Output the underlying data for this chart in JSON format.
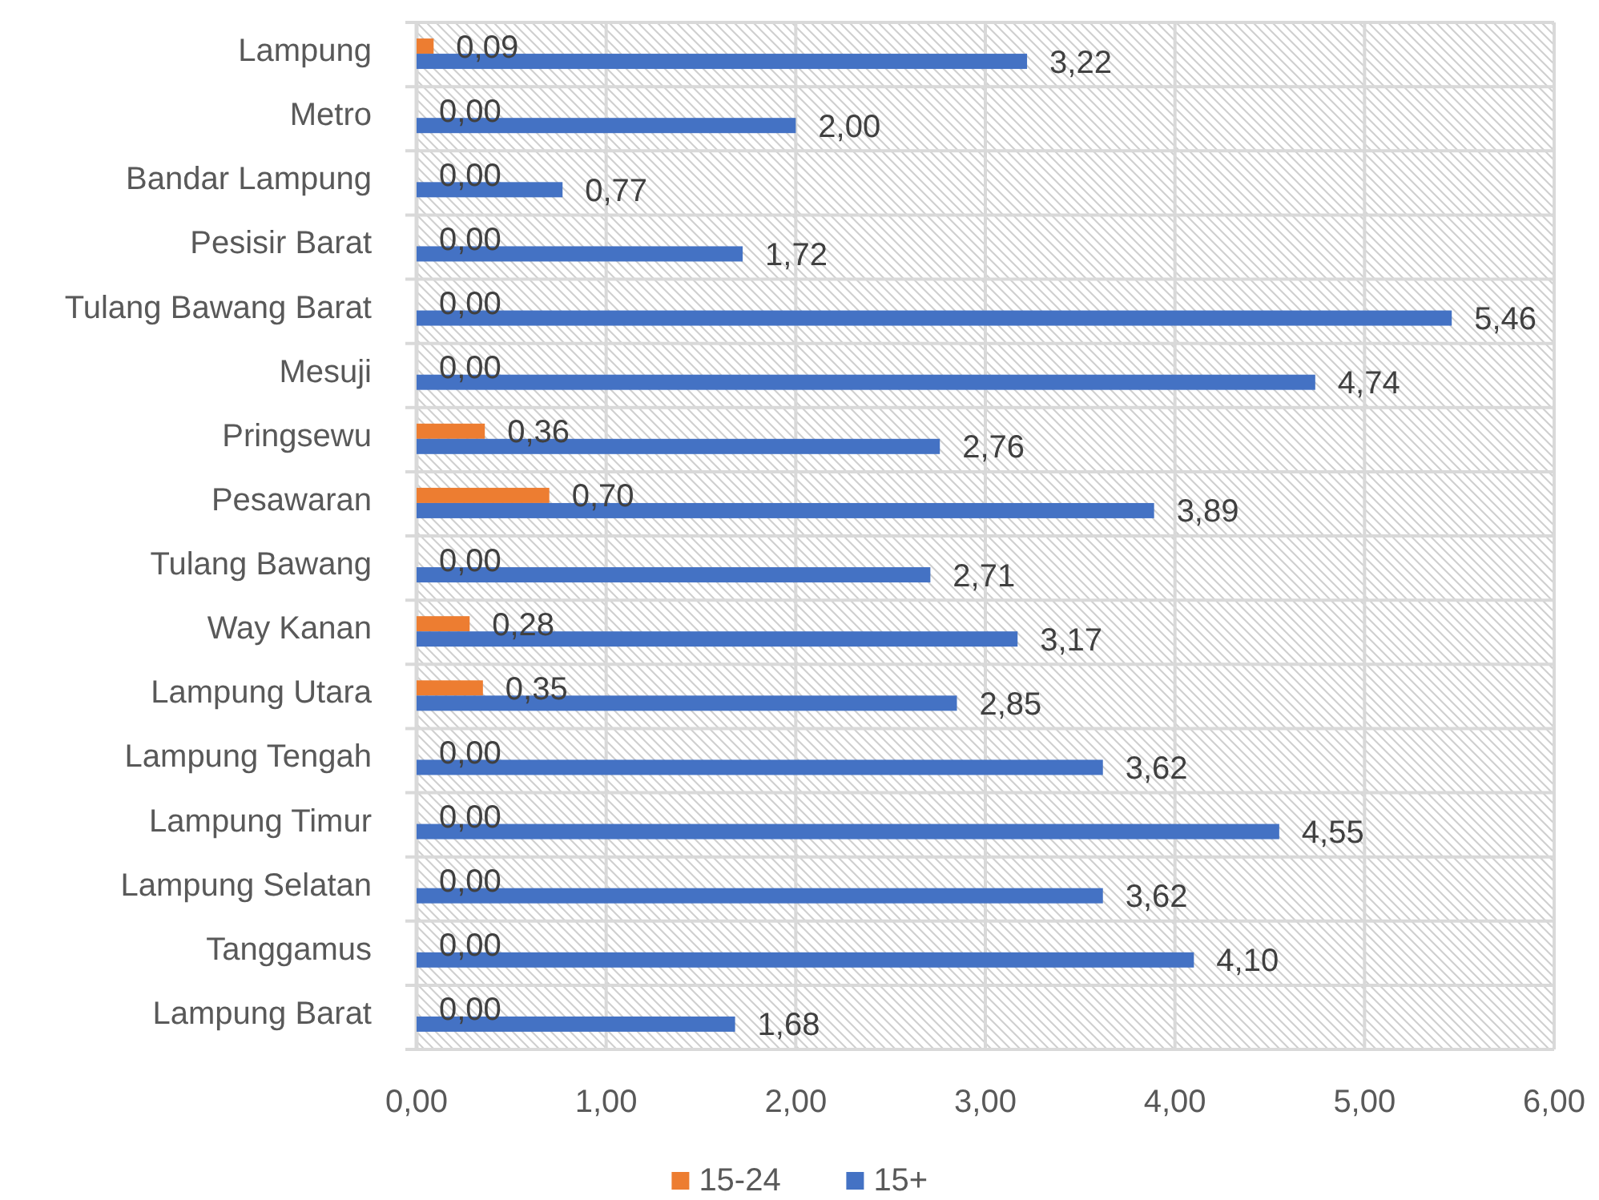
{
  "chart_data": {
    "type": "bar",
    "orientation": "horizontal",
    "categories": [
      "Lampung",
      "Metro",
      "Bandar Lampung",
      "Pesisir Barat",
      "Tulang Bawang Barat",
      "Mesuji",
      "Pringsewu",
      "Pesawaran",
      "Tulang Bawang",
      "Way Kanan",
      "Lampung Utara",
      "Lampung Tengah",
      "Lampung Timur",
      "Lampung Selatan",
      "Tanggamus",
      "Lampung Barat"
    ],
    "series": [
      {
        "name": "15-24",
        "color": "#ed7d31",
        "values": [
          0.09,
          0,
          0,
          0,
          0,
          0,
          0.36,
          0.7,
          0,
          0.28,
          0.35,
          0,
          0,
          0,
          0,
          0
        ],
        "value_labels": [
          "0,09",
          "0,00",
          "0,00",
          "0,00",
          "0,00",
          "0,00",
          "0,36",
          "0,70",
          "0,00",
          "0,28",
          "0,35",
          "0,00",
          "0,00",
          "0,00",
          "0,00",
          "0,00"
        ]
      },
      {
        "name": "15+",
        "color": "#4472c4",
        "values": [
          3.22,
          2.0,
          0.77,
          1.72,
          5.46,
          4.74,
          2.76,
          3.89,
          2.71,
          3.17,
          2.85,
          3.62,
          4.55,
          3.62,
          4.1,
          1.68
        ],
        "value_labels": [
          "3,22",
          "2,00",
          "0,77",
          "1,72",
          "5,46",
          "4,74",
          "2,76",
          "3,89",
          "2,71",
          "3,17",
          "2,85",
          "3,62",
          "4,55",
          "3,62",
          "4,10",
          "1,68"
        ]
      }
    ],
    "xlim": [
      0,
      6
    ],
    "xticks": [
      {
        "value": 0,
        "label": "0,00"
      },
      {
        "value": 1,
        "label": "1,00"
      },
      {
        "value": 2,
        "label": "2,00"
      },
      {
        "value": 3,
        "label": "3,00"
      },
      {
        "value": 4,
        "label": "4,00"
      },
      {
        "value": 5,
        "label": "5,00"
      },
      {
        "value": 6,
        "label": "6,00"
      }
    ],
    "grid": true,
    "legend": "bottom"
  }
}
